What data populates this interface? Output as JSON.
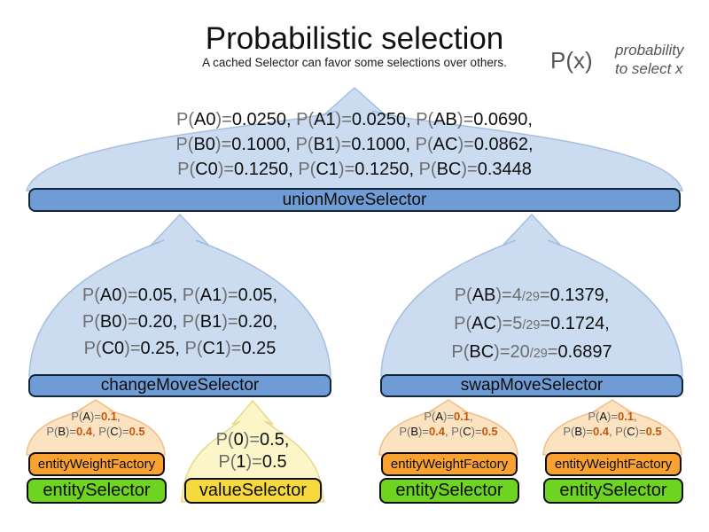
{
  "header": {
    "title": "Probabilistic selection",
    "subtitle": "A cached Selector can favor some selections over others."
  },
  "legend": {
    "symbol": "P(x)",
    "desc_line1": "probability",
    "desc_line2": "to select x"
  },
  "colors": {
    "blue_bar": "#6f9cd4",
    "light_blue_dome": "#cbdcf0",
    "orange_bar": "#f9a232",
    "green_bar": "#6fd321",
    "yellow_bar": "#f6d93d",
    "light_orange_dome": "#fbe2c0",
    "light_yellow_dome": "#fbf5c8",
    "gray_text": "#6e6e6e",
    "orange_value_text": "#c2570f"
  },
  "union_selector": {
    "label": "unionMoveSelector",
    "prob_lines": [
      [
        [
          "P(",
          "g"
        ],
        [
          "A0",
          "k"
        ],
        [
          ")=",
          "g"
        ],
        [
          "0.0250, ",
          "k"
        ],
        [
          "P(",
          "g"
        ],
        [
          "A1",
          "k"
        ],
        [
          ")=",
          "g"
        ],
        [
          "0.0250, ",
          "k"
        ],
        [
          "P(",
          "g"
        ],
        [
          "AB",
          "k"
        ],
        [
          ")=",
          "g"
        ],
        [
          "0.0690,",
          "k"
        ]
      ],
      [
        [
          "P(",
          "g"
        ],
        [
          "B0",
          "k"
        ],
        [
          ")=",
          "g"
        ],
        [
          "0.1000, ",
          "k"
        ],
        [
          "P(",
          "g"
        ],
        [
          "B1",
          "k"
        ],
        [
          ")=",
          "g"
        ],
        [
          "0.1000, ",
          "k"
        ],
        [
          "P(",
          "g"
        ],
        [
          "AC",
          "k"
        ],
        [
          ")=",
          "g"
        ],
        [
          "0.0862,",
          "k"
        ]
      ],
      [
        [
          "P(",
          "g"
        ],
        [
          "C0",
          "k"
        ],
        [
          ")=",
          "g"
        ],
        [
          "0.1250, ",
          "k"
        ],
        [
          "P(",
          "g"
        ],
        [
          "C1",
          "k"
        ],
        [
          ")=",
          "g"
        ],
        [
          "0.1250, ",
          "k"
        ],
        [
          "P(",
          "g"
        ],
        [
          "BC",
          "k"
        ],
        [
          ")=",
          "g"
        ],
        [
          "0.3448",
          "k"
        ]
      ]
    ]
  },
  "change_selector": {
    "label": "changeMoveSelector",
    "prob_lines": [
      [
        [
          "P(",
          "g"
        ],
        [
          "A0",
          "k"
        ],
        [
          ")=",
          "g"
        ],
        [
          "0.05, ",
          "k"
        ],
        [
          "P(",
          "g"
        ],
        [
          "A1",
          "k"
        ],
        [
          ")=",
          "g"
        ],
        [
          "0.05,",
          "k"
        ]
      ],
      [
        [
          "P(",
          "g"
        ],
        [
          "B0",
          "k"
        ],
        [
          ")=",
          "g"
        ],
        [
          "0.20, ",
          "k"
        ],
        [
          "P(",
          "g"
        ],
        [
          "B1",
          "k"
        ],
        [
          ")=",
          "g"
        ],
        [
          "0.20,",
          "k"
        ]
      ],
      [
        [
          "P(",
          "g"
        ],
        [
          "C0",
          "k"
        ],
        [
          ")=",
          "g"
        ],
        [
          "0.25, ",
          "k"
        ],
        [
          "P(",
          "g"
        ],
        [
          "C1",
          "k"
        ],
        [
          ")=",
          "g"
        ],
        [
          "0.25",
          "k"
        ]
      ]
    ]
  },
  "swap_selector": {
    "label": "swapMoveSelector",
    "prob_lines": [
      [
        [
          "P(",
          "g"
        ],
        [
          "AB",
          "k"
        ],
        [
          ")=",
          "g"
        ],
        [
          "4",
          "g"
        ],
        [
          "/29",
          "f"
        ],
        [
          "=",
          "g"
        ],
        [
          "0.1379,",
          "k"
        ]
      ],
      [
        [
          "P(",
          "g"
        ],
        [
          "AC",
          "k"
        ],
        [
          ")=",
          "g"
        ],
        [
          "5",
          "g"
        ],
        [
          "/29",
          "f"
        ],
        [
          "=",
          "g"
        ],
        [
          "0.1724,",
          "k"
        ]
      ],
      [
        [
          "P(",
          "g"
        ],
        [
          "BC",
          "k"
        ],
        [
          ")=",
          "g"
        ],
        [
          "20",
          "g"
        ],
        [
          "/29",
          "f"
        ],
        [
          "=",
          "g"
        ],
        [
          "0.6897",
          "k"
        ]
      ]
    ]
  },
  "entity_weight_factory": {
    "label": "entityWeightFactory",
    "prob_lines": [
      [
        [
          "P(",
          "g"
        ],
        [
          "A",
          "k"
        ],
        [
          ")=",
          "g"
        ],
        [
          "0.1",
          "o"
        ],
        [
          ",",
          "g"
        ]
      ],
      [
        [
          "P(",
          "g"
        ],
        [
          "B",
          "k"
        ],
        [
          ")=",
          "g"
        ],
        [
          "0.4",
          "o"
        ],
        [
          ", ",
          "g"
        ],
        [
          "P(",
          "g"
        ],
        [
          "C",
          "k"
        ],
        [
          ")=",
          "g"
        ],
        [
          "0.5",
          "o"
        ]
      ]
    ]
  },
  "entity_selector": {
    "label": "entitySelector"
  },
  "value_selector": {
    "label": "valueSelector",
    "prob_lines": [
      [
        [
          "P(",
          "g"
        ],
        [
          "0",
          "k"
        ],
        [
          ")=",
          "g"
        ],
        [
          "0.5,",
          "k"
        ]
      ],
      [
        [
          "P(",
          "g"
        ],
        [
          "1",
          "k"
        ],
        [
          ")=",
          "g"
        ],
        [
          "0.5",
          "k"
        ]
      ]
    ]
  }
}
